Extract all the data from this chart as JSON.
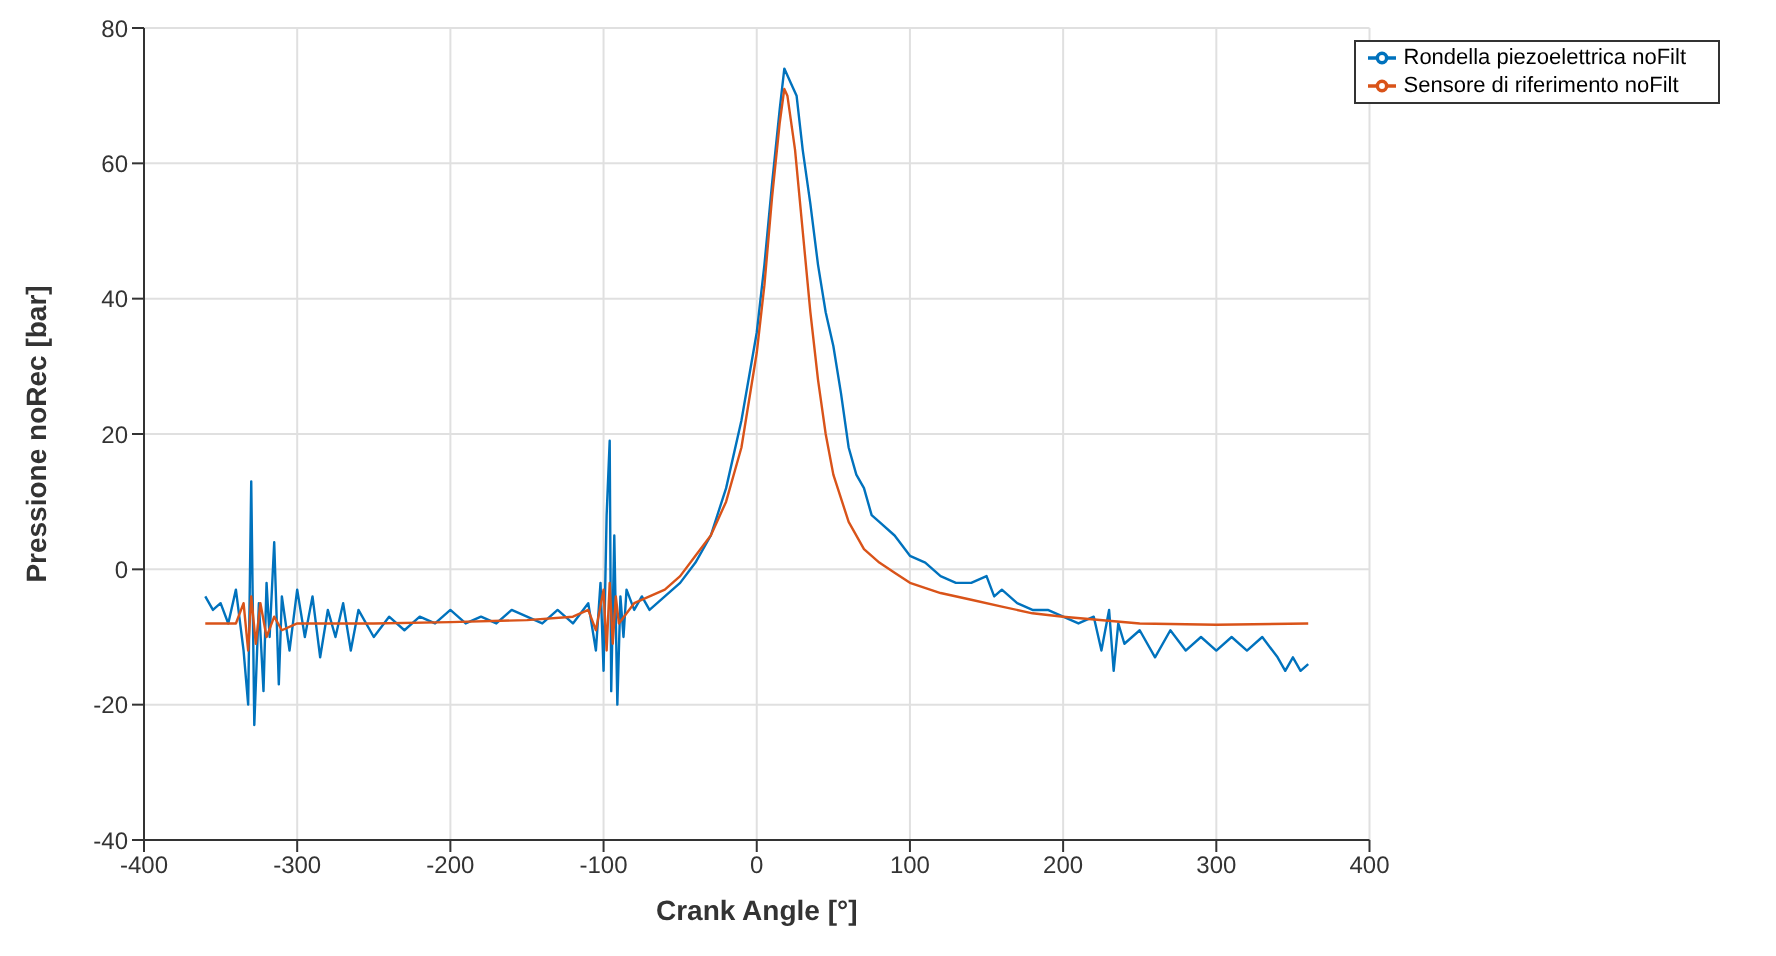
{
  "chart_data": {
    "type": "line",
    "xlabel": "Crank Angle [°]",
    "ylabel": "Pressione noRec [bar]",
    "xlim": [
      -400,
      400
    ],
    "xticks": [
      -400,
      -300,
      -200,
      -100,
      0,
      100,
      200,
      300,
      400
    ],
    "ylim": [
      -40,
      80
    ],
    "yticks": [
      -40,
      -20,
      0,
      20,
      40,
      60,
      80
    ],
    "grid": true,
    "legend": "top right",
    "marker": "none",
    "line_style": "solid",
    "series": [
      {
        "name": "Rondella piezoelettrica noFilt",
        "color": "#0072bd",
        "x": [
          -360,
          -355,
          -350,
          -345,
          -340,
          -335,
          -332,
          -330,
          -328,
          -325,
          -322,
          -320,
          -318,
          -315,
          -312,
          -310,
          -305,
          -300,
          -295,
          -290,
          -285,
          -280,
          -275,
          -270,
          -265,
          -260,
          -250,
          -240,
          -230,
          -220,
          -210,
          -200,
          -190,
          -180,
          -170,
          -160,
          -150,
          -140,
          -130,
          -120,
          -110,
          -105,
          -102,
          -100,
          -98,
          -96,
          -95,
          -93,
          -91,
          -89,
          -87,
          -85,
          -80,
          -75,
          -70,
          -60,
          -50,
          -40,
          -30,
          -20,
          -10,
          0,
          5,
          10,
          15,
          18,
          22,
          26,
          30,
          35,
          40,
          45,
          50,
          55,
          60,
          65,
          70,
          75,
          80,
          90,
          100,
          110,
          120,
          130,
          140,
          150,
          155,
          160,
          170,
          180,
          190,
          200,
          210,
          220,
          225,
          230,
          233,
          236,
          240,
          250,
          260,
          270,
          280,
          290,
          300,
          310,
          320,
          330,
          340,
          345,
          350,
          355,
          360
        ],
        "values": [
          -4,
          -6,
          -5,
          -8,
          -3,
          -12,
          -20,
          13,
          -23,
          -5,
          -18,
          -2,
          -10,
          4,
          -17,
          -4,
          -12,
          -3,
          -10,
          -4,
          -13,
          -6,
          -10,
          -5,
          -12,
          -6,
          -10,
          -7,
          -9,
          -7,
          -8,
          -6,
          -8,
          -7,
          -8,
          -6,
          -7,
          -8,
          -6,
          -8,
          -5,
          -12,
          -2,
          -15,
          8,
          19,
          -18,
          5,
          -20,
          -4,
          -10,
          -3,
          -6,
          -4,
          -6,
          -4,
          -2,
          1,
          5,
          12,
          22,
          35,
          45,
          57,
          68,
          74,
          72,
          70,
          62,
          54,
          45,
          38,
          33,
          26,
          18,
          14,
          12,
          8,
          7,
          5,
          2,
          1,
          -1,
          -2,
          -2,
          -1,
          -4,
          -3,
          -5,
          -6,
          -6,
          -7,
          -8,
          -7,
          -12,
          -6,
          -15,
          -8,
          -11,
          -9,
          -13,
          -9,
          -12,
          -10,
          -12,
          -10,
          -12,
          -10,
          -13,
          -15,
          -13,
          -15,
          -14
        ]
      },
      {
        "name": "Sensore di riferimento noFilt",
        "color": "#d95319",
        "x": [
          -360,
          -340,
          -335,
          -332,
          -330,
          -327,
          -324,
          -320,
          -315,
          -310,
          -300,
          -250,
          -200,
          -150,
          -120,
          -110,
          -105,
          -100,
          -98,
          -96,
          -94,
          -92,
          -90,
          -80,
          -70,
          -60,
          -50,
          -40,
          -30,
          -20,
          -10,
          0,
          5,
          10,
          15,
          18,
          20,
          25,
          30,
          35,
          40,
          45,
          50,
          60,
          70,
          80,
          90,
          100,
          120,
          140,
          160,
          180,
          200,
          250,
          300,
          360
        ],
        "values": [
          -8,
          -8,
          -5,
          -12,
          -4,
          -11,
          -5,
          -10,
          -7,
          -9,
          -8,
          -8,
          -7.8,
          -7.5,
          -7,
          -6,
          -9,
          -3,
          -12,
          -2,
          -11,
          -4,
          -8,
          -5,
          -4,
          -3,
          -1,
          2,
          5,
          10,
          18,
          32,
          42,
          55,
          66,
          71,
          70,
          62,
          50,
          38,
          28,
          20,
          14,
          7,
          3,
          1,
          -0.5,
          -2,
          -3.5,
          -4.5,
          -5.5,
          -6.5,
          -7,
          -8,
          -8.2,
          -8
        ]
      }
    ]
  }
}
